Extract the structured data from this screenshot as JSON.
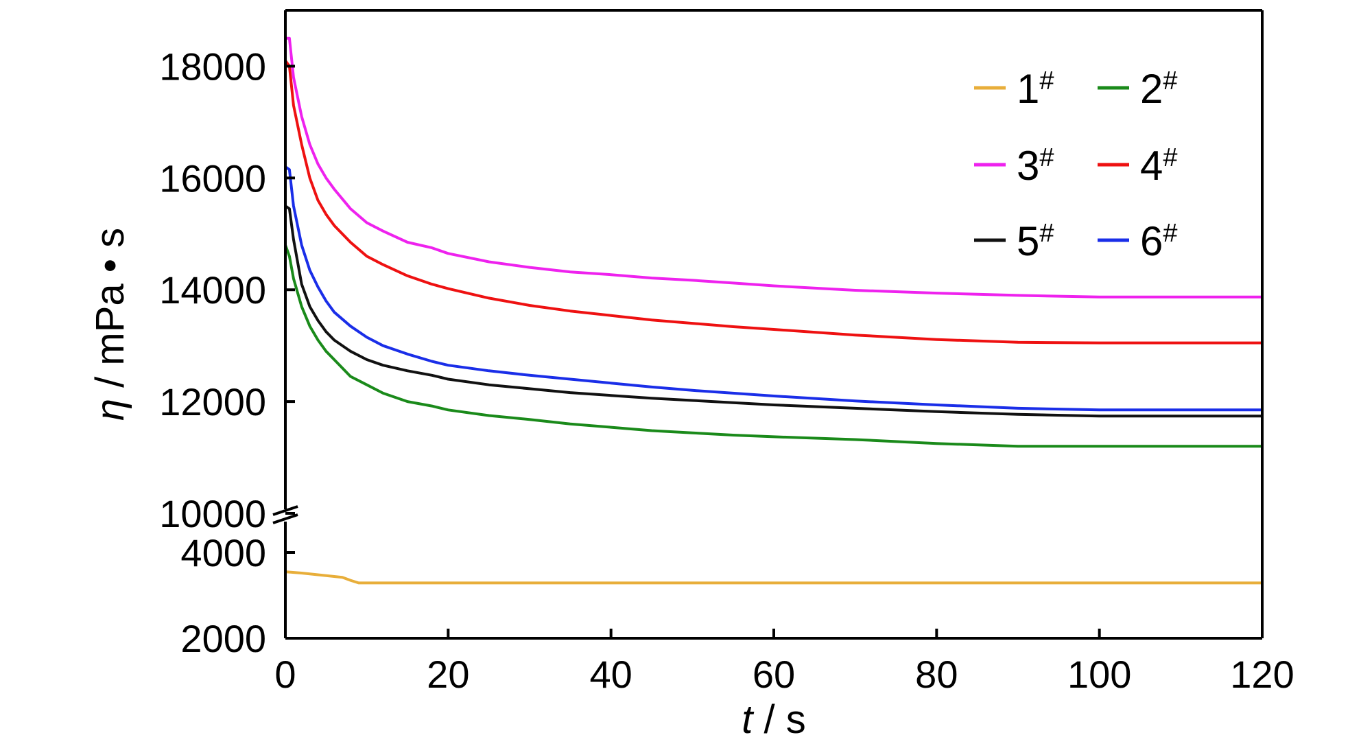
{
  "chart_data": {
    "type": "line",
    "xlabel": {
      "italic": "t",
      "rest": " / s"
    },
    "ylabel": {
      "italic": "η",
      "rest": " / mPa • s"
    },
    "xlim": [
      0,
      120
    ],
    "x_ticks": [
      "0",
      "20",
      "40",
      "60",
      "80",
      "100",
      "120"
    ],
    "y_broken": true,
    "y_lower_range": [
      2000,
      4000
    ],
    "y_upper_range": [
      10000,
      19000
    ],
    "y_ticks_lower": [
      "2000",
      "4000"
    ],
    "y_ticks_upper": [
      "10000",
      "12000",
      "14000",
      "16000",
      "18000"
    ],
    "legend_position": "top-right",
    "grid": false,
    "series": [
      {
        "name": "1",
        "sup": "#",
        "color": "#e8ae3a",
        "x": [
          0,
          2,
          4,
          7,
          8,
          9,
          20,
          40,
          60,
          80,
          100,
          120
        ],
        "y": [
          3550,
          3520,
          3480,
          3420,
          3350,
          3290,
          3290,
          3290,
          3290,
          3290,
          3290,
          3290
        ]
      },
      {
        "name": "2",
        "sup": "#",
        "color": "#1a8a1a",
        "x": [
          0,
          0.5,
          1,
          2,
          3,
          4,
          5,
          6,
          8,
          10,
          12,
          15,
          18,
          20,
          25,
          30,
          35,
          40,
          45,
          50,
          55,
          60,
          70,
          80,
          90,
          100,
          110,
          120
        ],
        "y": [
          14800,
          14600,
          14200,
          13700,
          13350,
          13100,
          12900,
          12750,
          12450,
          12300,
          12150,
          12000,
          11920,
          11850,
          11750,
          11680,
          11600,
          11540,
          11480,
          11440,
          11400,
          11370,
          11320,
          11250,
          11200,
          11200,
          11200,
          11200
        ]
      },
      {
        "name": "3",
        "sup": "#",
        "color": "#ee22ee",
        "x": [
          0,
          0.5,
          1,
          2,
          3,
          4,
          5,
          6,
          8,
          10,
          12,
          15,
          18,
          20,
          25,
          30,
          35,
          40,
          45,
          50,
          55,
          60,
          70,
          80,
          90,
          100,
          110,
          120
        ],
        "y": [
          18500,
          18500,
          17800,
          17100,
          16600,
          16250,
          16000,
          15800,
          15450,
          15200,
          15050,
          14850,
          14750,
          14650,
          14500,
          14400,
          14320,
          14270,
          14210,
          14170,
          14120,
          14070,
          13990,
          13940,
          13900,
          13870,
          13870,
          13870
        ]
      },
      {
        "name": "4",
        "sup": "#",
        "color": "#ee1111",
        "x": [
          0,
          0.5,
          1,
          2,
          3,
          4,
          5,
          6,
          8,
          10,
          12,
          15,
          18,
          20,
          25,
          30,
          35,
          40,
          45,
          50,
          55,
          60,
          70,
          80,
          90,
          100,
          110,
          120
        ],
        "y": [
          18100,
          18000,
          17300,
          16600,
          16000,
          15600,
          15350,
          15150,
          14850,
          14600,
          14450,
          14250,
          14100,
          14020,
          13850,
          13720,
          13620,
          13540,
          13460,
          13400,
          13340,
          13290,
          13190,
          13110,
          13060,
          13050,
          13050,
          13050
        ]
      },
      {
        "name": "5",
        "sup": "#",
        "color": "#111111",
        "x": [
          0,
          0.5,
          1,
          2,
          3,
          4,
          5,
          6,
          8,
          10,
          12,
          15,
          18,
          20,
          25,
          30,
          35,
          40,
          45,
          50,
          55,
          60,
          70,
          80,
          90,
          100,
          110,
          120
        ],
        "y": [
          15500,
          15450,
          14900,
          14100,
          13700,
          13450,
          13250,
          13100,
          12900,
          12750,
          12650,
          12550,
          12470,
          12400,
          12300,
          12230,
          12160,
          12110,
          12060,
          12020,
          11980,
          11940,
          11880,
          11820,
          11770,
          11740,
          11740,
          11740
        ]
      },
      {
        "name": "6",
        "sup": "#",
        "color": "#1a2ee8",
        "x": [
          0,
          0.5,
          1,
          2,
          3,
          4,
          5,
          6,
          8,
          10,
          12,
          15,
          18,
          20,
          25,
          30,
          35,
          40,
          45,
          50,
          55,
          60,
          70,
          80,
          90,
          100,
          110,
          120
        ],
        "y": [
          16200,
          16150,
          15500,
          14800,
          14350,
          14050,
          13800,
          13600,
          13350,
          13150,
          13000,
          12850,
          12720,
          12650,
          12550,
          12470,
          12400,
          12330,
          12260,
          12200,
          12150,
          12100,
          12010,
          11940,
          11880,
          11850,
          11850,
          11850
        ]
      }
    ]
  }
}
